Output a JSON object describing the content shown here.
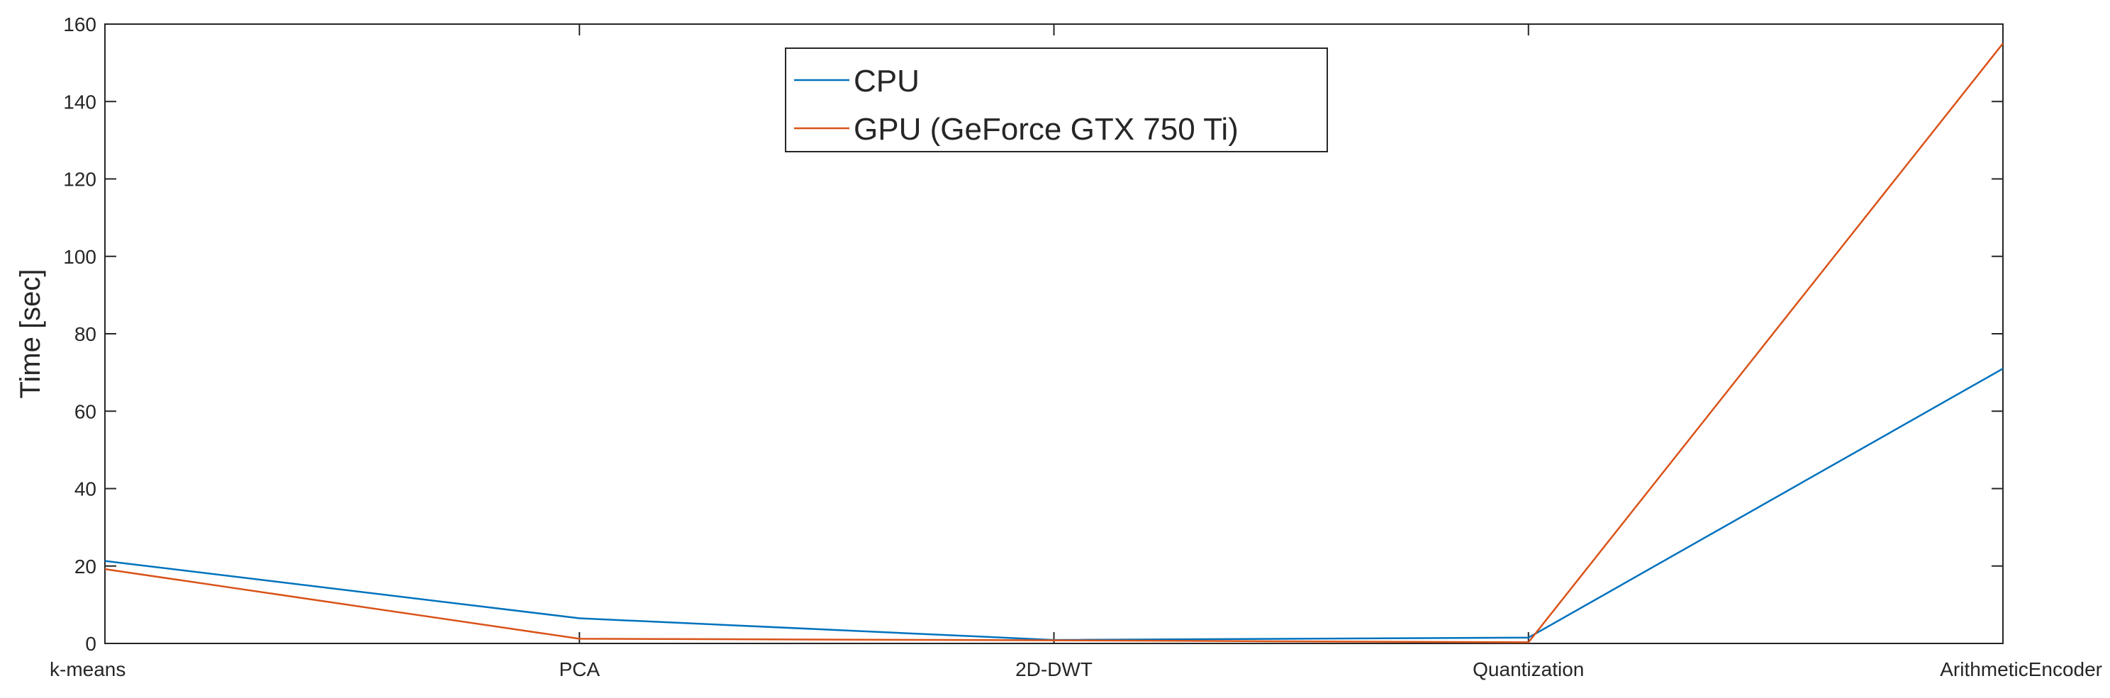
{
  "chart_data": {
    "type": "line",
    "title": "",
    "xlabel": "",
    "ylabel": "Time [sec]",
    "categories": [
      "k-means",
      "PCA",
      "2D-DWT",
      "Quantization",
      "ArithmeticEncoder"
    ],
    "ylim": [
      0,
      160
    ],
    "yticks": [
      0,
      20,
      40,
      60,
      80,
      100,
      120,
      140,
      160
    ],
    "grid": false,
    "legend_position": "top-center",
    "series": [
      {
        "name": "CPU",
        "color": "#0072bd",
        "values": [
          21.3,
          6.5,
          0.9,
          1.5,
          71.0
        ]
      },
      {
        "name": "GPU (GeForce GTX 750 Ti)",
        "color": "#d95319",
        "values": [
          19.2,
          1.2,
          0.8,
          0.3,
          155.0
        ]
      }
    ]
  }
}
